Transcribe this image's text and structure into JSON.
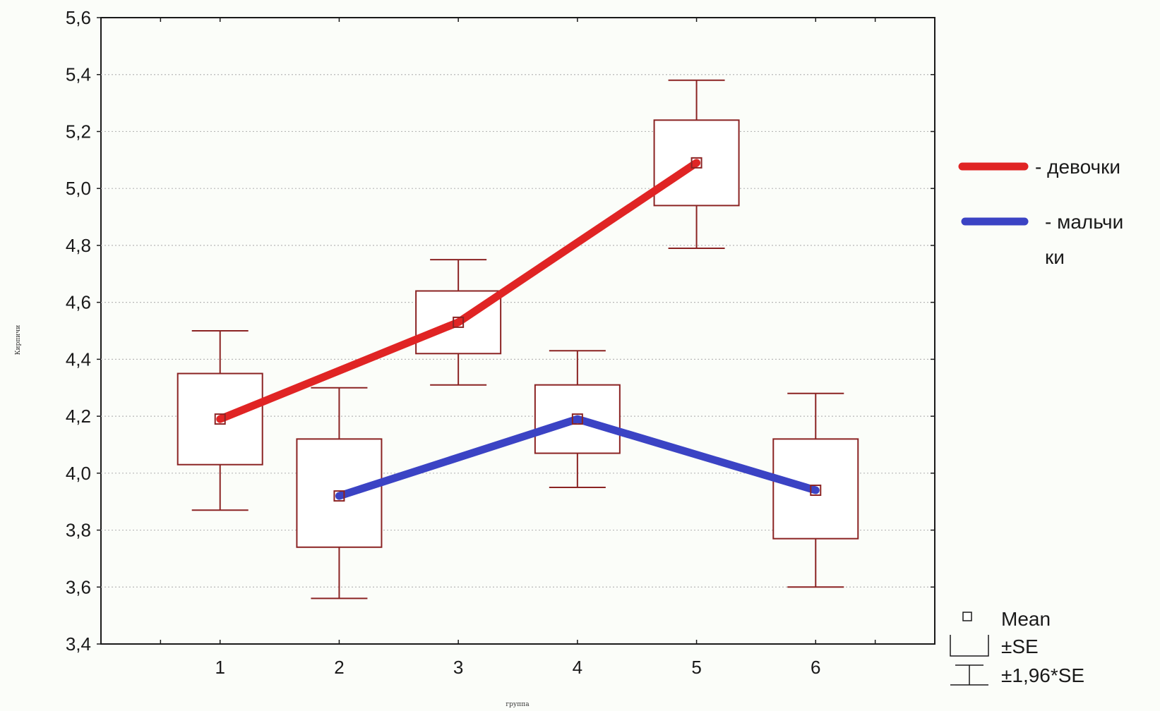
{
  "chart_data": {
    "type": "box",
    "title": "",
    "xlabel": "группа",
    "ylabel": "Кирпичи",
    "ylim": [
      3.4,
      5.6
    ],
    "yticks": [
      "3,4",
      "3,6",
      "3,8",
      "4,0",
      "4,2",
      "4,4",
      "4,6",
      "4,8",
      "5,0",
      "5,2",
      "5,4",
      "5,6"
    ],
    "xticks": [
      "1",
      "2",
      "3",
      "4",
      "5",
      "6"
    ],
    "xlim": [
      0,
      7
    ],
    "grid": true,
    "boxes": [
      {
        "x": 1,
        "mean": 4.19,
        "se_low": 4.03,
        "se_high": 4.35,
        "ci_low": 3.87,
        "ci_high": 4.5
      },
      {
        "x": 2,
        "mean": 3.92,
        "se_low": 3.74,
        "se_high": 4.12,
        "ci_low": 3.56,
        "ci_high": 4.3
      },
      {
        "x": 3,
        "mean": 4.53,
        "se_low": 4.42,
        "se_high": 4.64,
        "ci_low": 4.31,
        "ci_high": 4.75
      },
      {
        "x": 4,
        "mean": 4.19,
        "se_low": 4.07,
        "se_high": 4.31,
        "ci_low": 3.95,
        "ci_high": 4.43
      },
      {
        "x": 5,
        "mean": 5.09,
        "se_low": 4.94,
        "se_high": 5.24,
        "ci_low": 4.79,
        "ci_high": 5.38
      },
      {
        "x": 6,
        "mean": 3.94,
        "se_low": 3.77,
        "se_high": 4.12,
        "ci_low": 3.6,
        "ci_high": 4.28
      }
    ],
    "series": [
      {
        "name": "- девочки",
        "color": "#e02424",
        "x": [
          1,
          3,
          5
        ],
        "values": [
          4.19,
          4.53,
          5.09
        ]
      },
      {
        "name": "- мальчи ки",
        "color": "#3b43c4",
        "x": [
          2,
          4,
          6
        ],
        "values": [
          3.92,
          4.19,
          3.94
        ]
      }
    ],
    "legend": {
      "placement": "right",
      "line1": "- мальчи",
      "line2": "ки"
    },
    "key": {
      "placement": "bottom-right",
      "mean": "Mean",
      "se": "±SE",
      "ci": "±1,96*SE"
    },
    "colors": {
      "box": "#8b2323",
      "grid": "#b8b8b8",
      "frame": "#1a1a1a"
    }
  }
}
